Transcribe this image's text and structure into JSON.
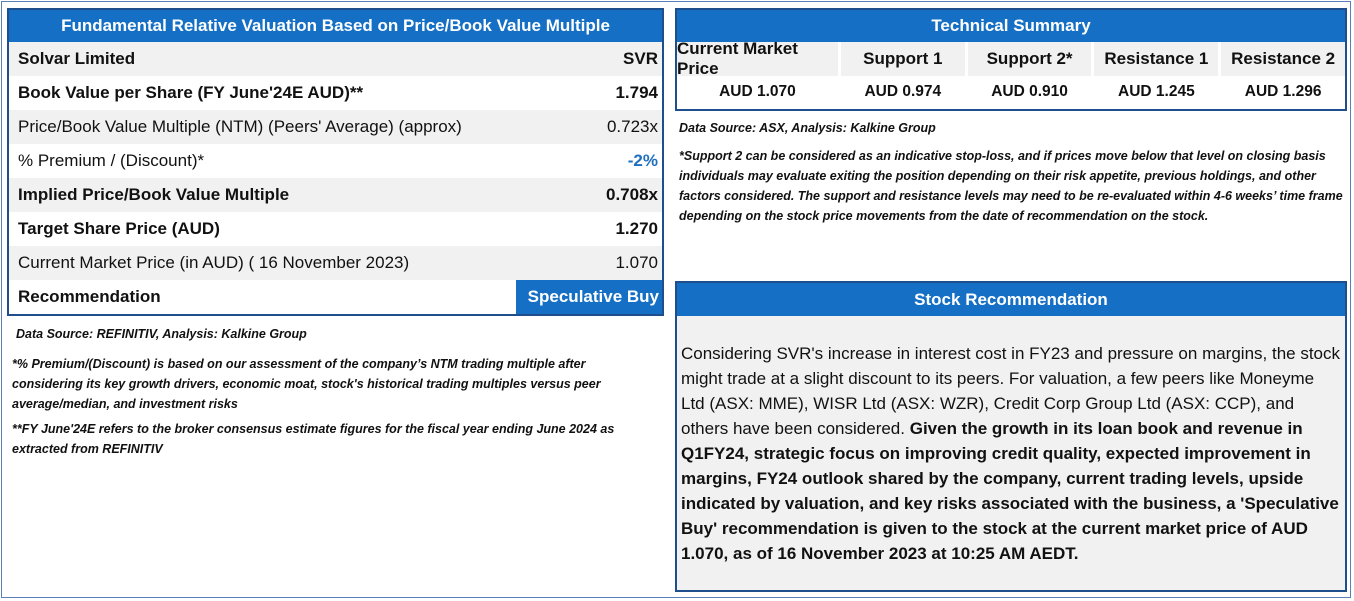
{
  "left": {
    "title": "Fundamental Relative Valuation Based on Price/Book Value Multiple",
    "company": "Solvar Limited",
    "ticker": "SVR",
    "rows": [
      {
        "label": "Book Value per Share (FY June'24E AUD)**",
        "value": "1.794"
      },
      {
        "label": "Price/Book Value Multiple (NTM)  (Peers' Average) (approx)",
        "value": "0.723x"
      },
      {
        "label": "% Premium / (Discount)*",
        "value": "-2%"
      },
      {
        "label": "Implied Price/Book Value Multiple",
        "value": "0.708x"
      },
      {
        "label": "Target Share Price (AUD)",
        "value": "1.270"
      },
      {
        "label": "Current Market Price (in AUD) ( 16 November 2023)",
        "value": "1.070"
      }
    ],
    "recommendation_label": "Recommendation",
    "recommendation_value": "Speculative Buy",
    "source": "Data Source: REFINITIV, Analysis: Kalkine Group",
    "note1": "*% Premium/(Discount) is based on our assessment of the company’s NTM trading multiple after considering its key growth drivers, economic moat, stock's historical trading multiples versus peer average/median, and investment risks",
    "note2": " **FY June'24E refers to the broker consensus estimate figures for the fiscal year ending June 2024  as extracted from REFINITIV"
  },
  "tech": {
    "title": "Technical Summary",
    "headers": [
      "Current Market Price",
      "Support 1",
      "Support 2*",
      "Resistance 1",
      "Resistance 2"
    ],
    "values": [
      "AUD 1.070",
      "AUD 0.974",
      "AUD 0.910",
      "AUD 1.245",
      "AUD 1.296"
    ],
    "source": "Data Source: ASX, Analysis: Kalkine Group",
    "note": "*Support 2 can be considered as an indicative stop-loss, and if prices move below that level on closing basis individuals may evaluate exiting the position depending on their risk appetite, previous holdings, and other factors considered. The support and resistance levels may need to be re-evaluated within 4-6 weeks’ time frame depending on the stock price movements from the date of recommendation on the stock."
  },
  "reco": {
    "title": "Stock Recommendation",
    "text_plain": "Considering SVR's increase in interest cost in FY23 and pressure on margins, the stock might trade at a slight discount to its peers. For valuation, a few peers like Moneyme Ltd (ASX: MME), WISR Ltd (ASX: WZR), Credit Corp Group Ltd (ASX: CCP), and others have been considered. ",
    "text_bold": "Given the growth in its loan book and revenue in Q1FY24, strategic focus on improving credit quality, expected improvement in margins, FY24 outlook shared by the company, current trading levels, upside indicated by valuation, and key risks associated with the business, a 'Speculative Buy' recommendation is given to the stock at the current market price of AUD 1.070, as of 16 November 2023 at 10:25 AM AEDT."
  }
}
